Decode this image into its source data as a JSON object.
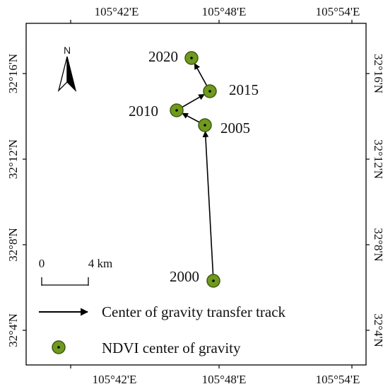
{
  "map": {
    "north_label": "N",
    "top_longitude_labels": [
      "105°42'E",
      "105°48'E",
      "105°54'E"
    ],
    "bottom_longitude_labels": [
      "105°42'E",
      "105°48'E",
      "105°54'E"
    ],
    "left_latitude_labels": [
      "32°16'N",
      "32°12'N",
      "32°8'N",
      "32°4'N"
    ],
    "right_latitude_labels": [
      "32°16'N",
      "32°12'N",
      "32°8'N",
      "32°4'N"
    ],
    "scale_bar": {
      "start_label": "0",
      "end_label": "4 km"
    },
    "colors": {
      "point_fill": "#6f9a1f",
      "point_stroke": "#3d5a10",
      "track": "#000000"
    }
  },
  "chart_data": {
    "type": "scatter",
    "title": "",
    "points": [
      {
        "label": "2000",
        "year": 2000
      },
      {
        "label": "2005",
        "year": 2005
      },
      {
        "label": "2010",
        "year": 2010
      },
      {
        "label": "2015",
        "year": 2015
      },
      {
        "label": "2020",
        "year": 2020
      }
    ],
    "track_order": [
      "2000",
      "2005",
      "2010",
      "2015",
      "2020"
    ]
  },
  "legend": {
    "track_label": "Center of gravity transfer track",
    "point_label": "NDVI center of gravity"
  }
}
